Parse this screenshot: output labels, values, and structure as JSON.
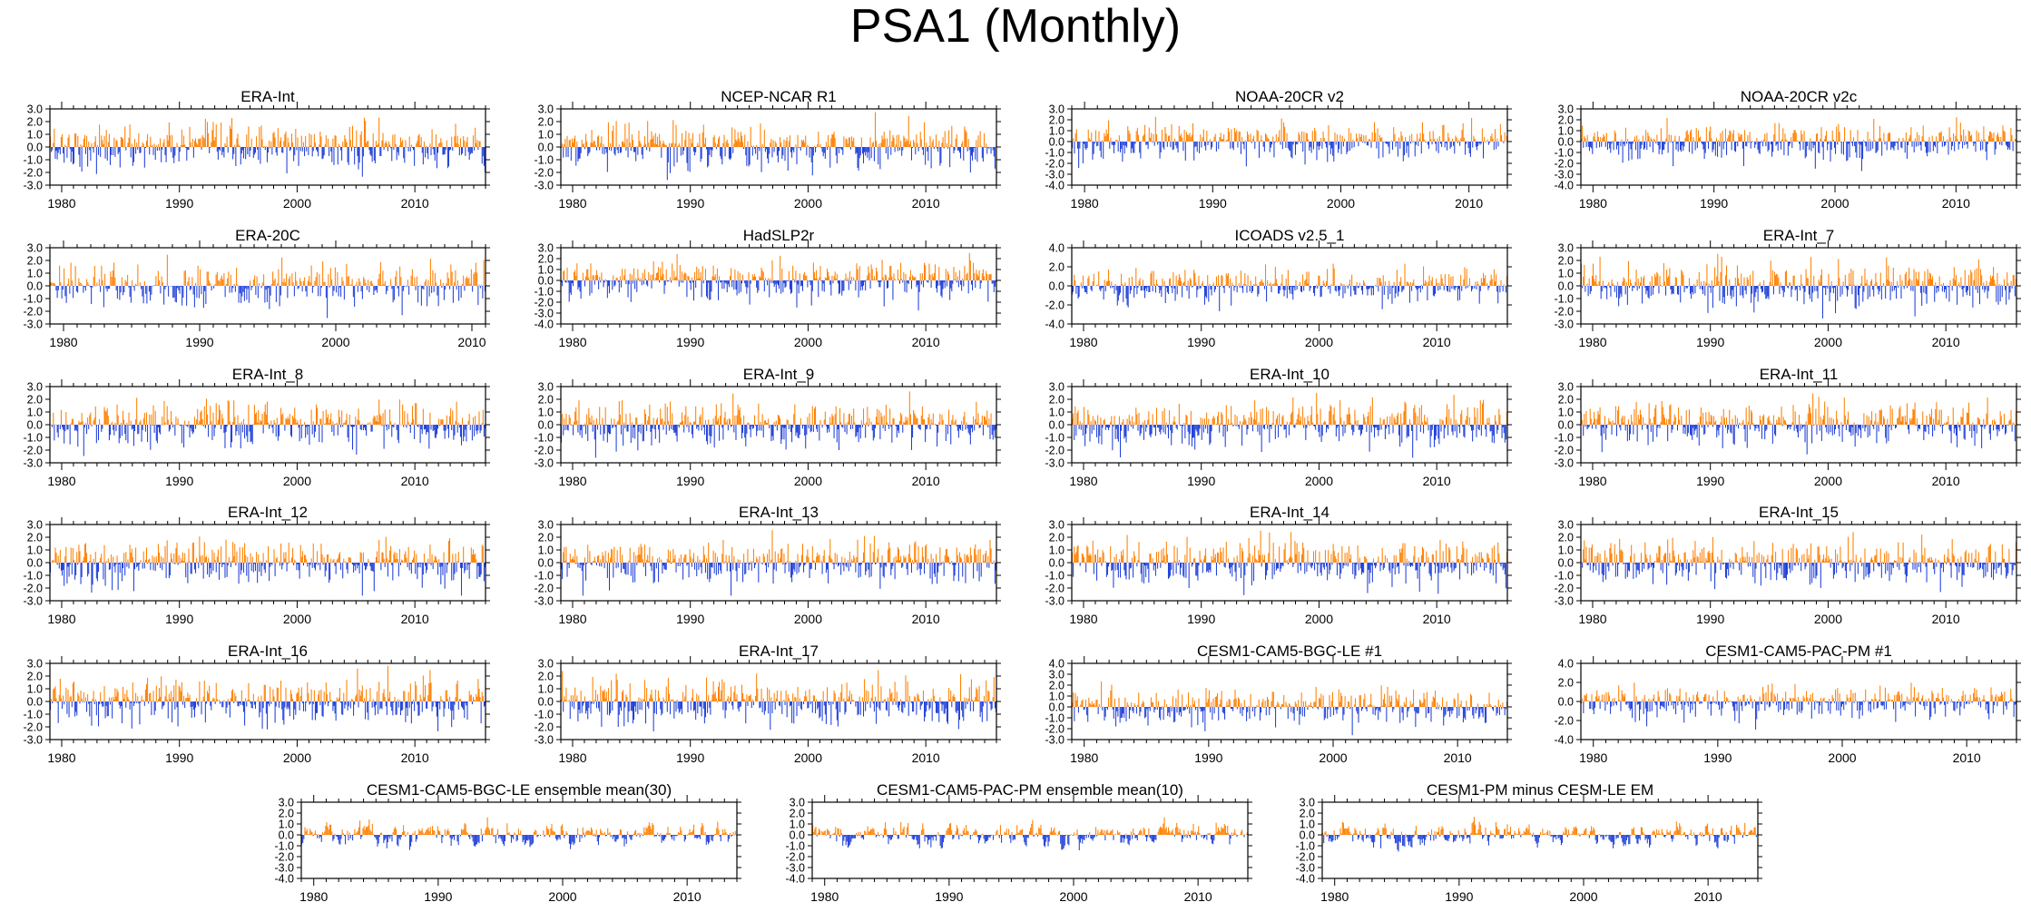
{
  "title": "PSA1 (Monthly)",
  "colors": {
    "positive": "#ff8000",
    "negative": "#1f3fd8",
    "axis": "#000000",
    "background": "#ffffff"
  },
  "chart_data": [
    {
      "type": "bar",
      "title": "ERA-Int",
      "x_range": [
        1979,
        2016
      ],
      "xticks": [
        1980,
        1990,
        2000,
        2010
      ],
      "ylim": [
        -3,
        3
      ],
      "yticks": [
        "3.0",
        "2.0",
        "1.0",
        "0.0",
        "-1.0",
        "-2.0",
        "-3.0"
      ],
      "series": [
        {
          "name": "positive"
        },
        {
          "name": "negative"
        }
      ]
    },
    {
      "type": "bar",
      "title": "NCEP-NCAR R1",
      "x_range": [
        1979,
        2016
      ],
      "xticks": [
        1980,
        1990,
        2000,
        2010
      ],
      "ylim": [
        -3,
        3
      ],
      "yticks": [
        "3.0",
        "2.0",
        "1.0",
        "0.0",
        "-1.0",
        "-2.0",
        "-3.0"
      ],
      "series": [
        {
          "name": "positive"
        },
        {
          "name": "negative"
        }
      ]
    },
    {
      "type": "bar",
      "title": "NOAA-20CR v2",
      "x_range": [
        1979,
        2013
      ],
      "xticks": [
        1980,
        1990,
        2000,
        2010
      ],
      "ylim": [
        -4,
        3
      ],
      "yticks": [
        "3.0",
        "2.0",
        "1.0",
        "0.0",
        "-1.0",
        "-2.0",
        "-3.0",
        "-4.0"
      ],
      "series": [
        {
          "name": "positive"
        },
        {
          "name": "negative"
        }
      ]
    },
    {
      "type": "bar",
      "title": "NOAA-20CR v2c",
      "x_range": [
        1979,
        2015
      ],
      "xticks": [
        1980,
        1990,
        2000,
        2010
      ],
      "ylim": [
        -4,
        3
      ],
      "yticks": [
        "3.0",
        "2.0",
        "1.0",
        "0.0",
        "-1.0",
        "-2.0",
        "-3.0",
        "-4.0"
      ],
      "series": [
        {
          "name": "positive"
        },
        {
          "name": "negative"
        }
      ]
    },
    {
      "type": "bar",
      "title": "ERA-20C",
      "x_range": [
        1979,
        2011
      ],
      "xticks": [
        1980,
        1990,
        2000,
        2010
      ],
      "ylim": [
        -3,
        3
      ],
      "yticks": [
        "3.0",
        "2.0",
        "1.0",
        "0.0",
        "-1.0",
        "-2.0",
        "-3.0"
      ],
      "series": [
        {
          "name": "positive"
        },
        {
          "name": "negative"
        }
      ]
    },
    {
      "type": "bar",
      "title": "HadSLP2r",
      "x_range": [
        1979,
        2016
      ],
      "xticks": [
        1980,
        1990,
        2000,
        2010
      ],
      "ylim": [
        -4,
        3
      ],
      "yticks": [
        "3.0",
        "2.0",
        "1.0",
        "0.0",
        "-1.0",
        "-2.0",
        "-3.0",
        "-4.0"
      ],
      "series": [
        {
          "name": "positive"
        },
        {
          "name": "negative"
        }
      ]
    },
    {
      "type": "bar",
      "title": "ICOADS v2.5_1",
      "x_range": [
        1979,
        2016
      ],
      "xticks": [
        1980,
        1990,
        2000,
        2010
      ],
      "ylim": [
        -4,
        4
      ],
      "yticks": [
        "4.0",
        "2.0",
        "0.0",
        "-2.0",
        "-4.0"
      ],
      "series": [
        {
          "name": "positive"
        },
        {
          "name": "negative"
        }
      ]
    },
    {
      "type": "bar",
      "title": "ERA-Int_7",
      "x_range": [
        1979,
        2016
      ],
      "xticks": [
        1980,
        1990,
        2000,
        2010
      ],
      "ylim": [
        -3,
        3
      ],
      "yticks": [
        "3.0",
        "2.0",
        "1.0",
        "0.0",
        "-1.0",
        "-2.0",
        "-3.0"
      ],
      "series": [
        {
          "name": "positive"
        },
        {
          "name": "negative"
        }
      ]
    },
    {
      "type": "bar",
      "title": "ERA-Int_8",
      "x_range": [
        1979,
        2016
      ],
      "xticks": [
        1980,
        1990,
        2000,
        2010
      ],
      "ylim": [
        -3,
        3
      ],
      "yticks": [
        "3.0",
        "2.0",
        "1.0",
        "0.0",
        "-1.0",
        "-2.0",
        "-3.0"
      ],
      "series": [
        {
          "name": "positive"
        },
        {
          "name": "negative"
        }
      ]
    },
    {
      "type": "bar",
      "title": "ERA-Int_9",
      "x_range": [
        1979,
        2016
      ],
      "xticks": [
        1980,
        1990,
        2000,
        2010
      ],
      "ylim": [
        -3,
        3
      ],
      "yticks": [
        "3.0",
        "2.0",
        "1.0",
        "0.0",
        "-1.0",
        "-2.0",
        "-3.0"
      ],
      "series": [
        {
          "name": "positive"
        },
        {
          "name": "negative"
        }
      ]
    },
    {
      "type": "bar",
      "title": "ERA-Int_10",
      "x_range": [
        1979,
        2016
      ],
      "xticks": [
        1980,
        1990,
        2000,
        2010
      ],
      "ylim": [
        -3,
        3
      ],
      "yticks": [
        "3.0",
        "2.0",
        "1.0",
        "0.0",
        "-1.0",
        "-2.0",
        "-3.0"
      ],
      "series": [
        {
          "name": "positive"
        },
        {
          "name": "negative"
        }
      ]
    },
    {
      "type": "bar",
      "title": "ERA-Int_11",
      "x_range": [
        1979,
        2016
      ],
      "xticks": [
        1980,
        1990,
        2000,
        2010
      ],
      "ylim": [
        -3,
        3
      ],
      "yticks": [
        "3.0",
        "2.0",
        "1.0",
        "0.0",
        "-1.0",
        "-2.0",
        "-3.0"
      ],
      "series": [
        {
          "name": "positive"
        },
        {
          "name": "negative"
        }
      ]
    },
    {
      "type": "bar",
      "title": "ERA-Int_12",
      "x_range": [
        1979,
        2016
      ],
      "xticks": [
        1980,
        1990,
        2000,
        2010
      ],
      "ylim": [
        -3,
        3
      ],
      "yticks": [
        "3.0",
        "2.0",
        "1.0",
        "0.0",
        "-1.0",
        "-2.0",
        "-3.0"
      ],
      "series": [
        {
          "name": "positive"
        },
        {
          "name": "negative"
        }
      ]
    },
    {
      "type": "bar",
      "title": "ERA-Int_13",
      "x_range": [
        1979,
        2016
      ],
      "xticks": [
        1980,
        1990,
        2000,
        2010
      ],
      "ylim": [
        -3,
        3
      ],
      "yticks": [
        "3.0",
        "2.0",
        "1.0",
        "0.0",
        "-1.0",
        "-2.0",
        "-3.0"
      ],
      "series": [
        {
          "name": "positive"
        },
        {
          "name": "negative"
        }
      ]
    },
    {
      "type": "bar",
      "title": "ERA-Int_14",
      "x_range": [
        1979,
        2016
      ],
      "xticks": [
        1980,
        1990,
        2000,
        2010
      ],
      "ylim": [
        -3,
        3
      ],
      "yticks": [
        "3.0",
        "2.0",
        "1.0",
        "0.0",
        "-1.0",
        "-2.0",
        "-3.0"
      ],
      "series": [
        {
          "name": "positive"
        },
        {
          "name": "negative"
        }
      ]
    },
    {
      "type": "bar",
      "title": "ERA-Int_15",
      "x_range": [
        1979,
        2016
      ],
      "xticks": [
        1980,
        1990,
        2000,
        2010
      ],
      "ylim": [
        -3,
        3
      ],
      "yticks": [
        "3.0",
        "2.0",
        "1.0",
        "0.0",
        "-1.0",
        "-2.0",
        "-3.0"
      ],
      "series": [
        {
          "name": "positive"
        },
        {
          "name": "negative"
        }
      ]
    },
    {
      "type": "bar",
      "title": "ERA-Int_16",
      "x_range": [
        1979,
        2016
      ],
      "xticks": [
        1980,
        1990,
        2000,
        2010
      ],
      "ylim": [
        -3,
        3
      ],
      "yticks": [
        "3.0",
        "2.0",
        "1.0",
        "0.0",
        "-1.0",
        "-2.0",
        "-3.0"
      ],
      "series": [
        {
          "name": "positive"
        },
        {
          "name": "negative"
        }
      ]
    },
    {
      "type": "bar",
      "title": "ERA-Int_17",
      "x_range": [
        1979,
        2016
      ],
      "xticks": [
        1980,
        1990,
        2000,
        2010
      ],
      "ylim": [
        -3,
        3
      ],
      "yticks": [
        "3.0",
        "2.0",
        "1.0",
        "0.0",
        "-1.0",
        "-2.0",
        "-3.0"
      ],
      "series": [
        {
          "name": "positive"
        },
        {
          "name": "negative"
        }
      ]
    },
    {
      "type": "bar",
      "title": "CESM1-CAM5-BGC-LE #1",
      "x_range": [
        1979,
        2014
      ],
      "xticks": [
        1980,
        1990,
        2000,
        2010
      ],
      "ylim": [
        -3,
        4
      ],
      "yticks": [
        "4.0",
        "3.0",
        "2.0",
        "1.0",
        "0.0",
        "-1.0",
        "-2.0",
        "-3.0"
      ],
      "series": [
        {
          "name": "positive"
        },
        {
          "name": "negative"
        }
      ]
    },
    {
      "type": "bar",
      "title": "CESM1-CAM5-PAC-PM #1",
      "x_range": [
        1979,
        2014
      ],
      "xticks": [
        1980,
        1990,
        2000,
        2010
      ],
      "ylim": [
        -4,
        4
      ],
      "yticks": [
        "4.0",
        "2.0",
        "0.0",
        "-2.0",
        "-4.0"
      ],
      "series": [
        {
          "name": "positive"
        },
        {
          "name": "negative"
        }
      ]
    },
    {
      "type": "bar",
      "title": "CESM1-CAM5-BGC-LE ensemble mean(30)",
      "x_range": [
        1979,
        2014
      ],
      "xticks": [
        1980,
        1990,
        2000,
        2010
      ],
      "ylim": [
        -4,
        3
      ],
      "yticks": [
        "3.0",
        "2.0",
        "1.0",
        "0.0",
        "-1.0",
        "-2.0",
        "-3.0",
        "-4.0"
      ],
      "series": [
        {
          "name": "positive"
        },
        {
          "name": "negative"
        }
      ]
    },
    {
      "type": "bar",
      "title": "CESM1-CAM5-PAC-PM ensemble mean(10)",
      "x_range": [
        1979,
        2014
      ],
      "xticks": [
        1980,
        1990,
        2000,
        2010
      ],
      "ylim": [
        -4,
        3
      ],
      "yticks": [
        "3.0",
        "2.0",
        "1.0",
        "0.0",
        "-1.0",
        "-2.0",
        "-3.0",
        "-4.0"
      ],
      "series": [
        {
          "name": "positive"
        },
        {
          "name": "negative"
        }
      ]
    },
    {
      "type": "bar",
      "title": "CESM1-PM minus CESM-LE EM",
      "x_range": [
        1979,
        2014
      ],
      "xticks": [
        1980,
        1990,
        2000,
        2010
      ],
      "ylim": [
        -4,
        3
      ],
      "yticks": [
        "3.0",
        "2.0",
        "1.0",
        "0.0",
        "-1.0",
        "-2.0",
        "-3.0",
        "-4.0"
      ],
      "series": [
        {
          "name": "positive"
        },
        {
          "name": "negative"
        }
      ]
    }
  ]
}
